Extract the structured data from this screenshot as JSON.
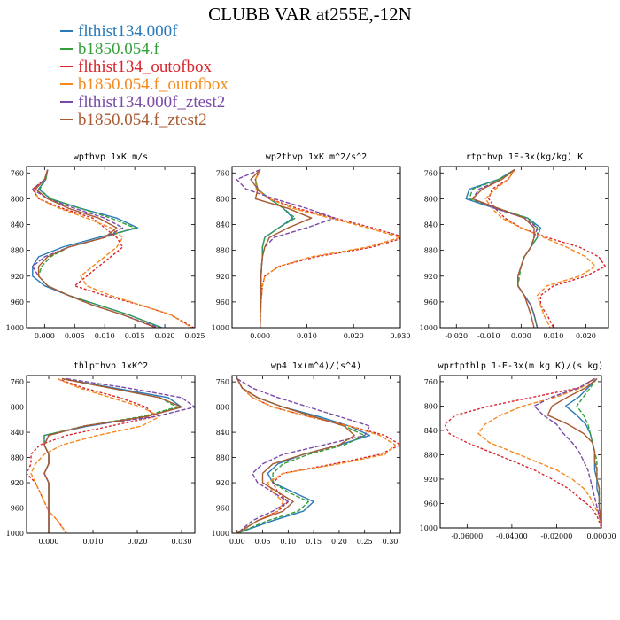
{
  "title": "CLUBB VAR at255E,-12N",
  "legend": [
    {
      "label": "flthist134.000f",
      "color": "#2a7ab8"
    },
    {
      "label": "b1850.054.f",
      "color": "#35a03a"
    },
    {
      "label": "flthist134_outofbox",
      "color": "#d9262e"
    },
    {
      "label": "b1850.054.f_outofbox",
      "color": "#f5891e"
    },
    {
      "label": "flthist134.000f_ztest2",
      "color": "#7a4aa6"
    },
    {
      "label": "b1850.054.f_ztest2",
      "color": "#a85a32"
    }
  ],
  "chart_data": [
    {
      "type": "line",
      "title": "wpthvp  1xK m/s",
      "xlim": [
        -0.003,
        0.025
      ],
      "ylim": [
        1000,
        750
      ],
      "xticks": [
        "0.000",
        "0.005",
        "0.010",
        "0.015",
        "0.020",
        "0.025"
      ],
      "xtick_values": [
        0,
        0.005,
        0.01,
        0.015,
        0.02,
        0.025
      ],
      "yticks": [
        760,
        800,
        840,
        880,
        920,
        960,
        1000
      ],
      "y": [
        755,
        770,
        785,
        800,
        815,
        830,
        845,
        860,
        875,
        890,
        905,
        920,
        935,
        950,
        965,
        980,
        1000
      ],
      "series": [
        {
          "values": [
            0.0005,
            0.0002,
            -0.001,
            0.001,
            0.006,
            0.012,
            0.0155,
            0.009,
            0.003,
            -0.001,
            -0.002,
            -0.002,
            0.0,
            0.004,
            0.009,
            0.014,
            0.0195
          ]
        },
        {
          "values": [
            0.0005,
            0.0002,
            -0.0008,
            0.001,
            0.006,
            0.011,
            0.015,
            0.01,
            0.004,
            0.001,
            -0.0005,
            -0.001,
            0.0005,
            0.004,
            0.009,
            0.014,
            0.0195
          ]
        },
        {
          "values": [
            0.0005,
            0.0,
            -0.002,
            -0.001,
            0.003,
            0.008,
            0.01,
            0.012,
            0.013,
            0.011,
            0.009,
            0.007,
            0.005,
            0.01,
            0.016,
            0.021,
            0.0248
          ]
        },
        {
          "values": [
            0.0005,
            0.0,
            -0.0018,
            -0.001,
            0.0025,
            0.007,
            0.011,
            0.013,
            0.012,
            0.01,
            0.008,
            0.006,
            0.007,
            0.011,
            0.016,
            0.021,
            0.0245
          ]
        },
        {
          "values": [
            0.0005,
            0.0,
            -0.002,
            0.0005,
            0.005,
            0.01,
            0.013,
            0.01,
            0.004,
            0.0,
            -0.002,
            -0.001,
            0.0005,
            0.004,
            0.008,
            0.013,
            0.019
          ]
        },
        {
          "values": [
            0.0005,
            0.0,
            -0.0015,
            0.0005,
            0.004,
            0.009,
            0.012,
            0.01,
            0.004,
            0.0005,
            -0.001,
            -0.001,
            0.0005,
            0.004,
            0.008,
            0.013,
            0.0185
          ]
        }
      ]
    },
    {
      "type": "line",
      "title": "wp2thvp  1xK m^2/s^2",
      "xlim": [
        -0.006,
        0.03
      ],
      "ylim": [
        1000,
        750
      ],
      "xticks": [
        "0.000",
        "0.010",
        "0.020",
        "0.030"
      ],
      "xtick_values": [
        0,
        0.01,
        0.02,
        0.03
      ],
      "yticks": [
        760,
        800,
        840,
        880,
        920,
        960,
        1000
      ],
      "y": [
        755,
        770,
        785,
        800,
        815,
        830,
        845,
        860,
        875,
        890,
        905,
        920,
        935,
        950,
        965,
        980,
        1000
      ],
      "series": [
        {
          "values": [
            0.0,
            -0.001,
            -0.0005,
            0.002,
            0.005,
            0.007,
            0.004,
            0.001,
            0.0005,
            0.0005,
            0.0003,
            0.0002,
            0.0002,
            0.0002,
            0.0001,
            0.0,
            0.0
          ]
        },
        {
          "values": [
            0.0,
            -0.001,
            -0.0005,
            0.002,
            0.005,
            0.0075,
            0.004,
            0.001,
            0.0005,
            0.0005,
            0.0003,
            0.0002,
            0.0002,
            0.0002,
            0.0001,
            0.0,
            0.0
          ]
        },
        {
          "values": [
            0.0,
            -0.001,
            -0.0008,
            0.002,
            0.008,
            0.016,
            0.024,
            0.031,
            0.024,
            0.012,
            0.004,
            0.001,
            0.0005,
            0.0003,
            0.0002,
            0.0001,
            0.0
          ]
        },
        {
          "values": [
            0.0,
            -0.001,
            -0.0008,
            0.002,
            0.007,
            0.015,
            0.023,
            0.03,
            0.023,
            0.011,
            0.004,
            0.001,
            0.0005,
            0.0003,
            0.0002,
            0.0001,
            0.0
          ]
        },
        {
          "values": [
            0.0,
            -0.005,
            -0.003,
            0.003,
            0.01,
            0.016,
            0.01,
            0.003,
            0.001,
            0.0005,
            0.0003,
            0.0002,
            0.0002,
            0.0002,
            0.0001,
            0.0,
            0.0
          ]
        },
        {
          "values": [
            0.0,
            -0.002,
            -0.0005,
            -0.001,
            0.006,
            0.011,
            0.006,
            0.002,
            0.001,
            0.0005,
            0.0003,
            0.0002,
            0.0002,
            0.0002,
            0.0001,
            0.0,
            0.0
          ]
        }
      ]
    },
    {
      "type": "line",
      "title": "rtpthvp  1E-3x(kg/kg) K",
      "xlim": [
        -0.025,
        0.027
      ],
      "ylim": [
        1000,
        750
      ],
      "xticks": [
        "-0.020",
        "-0.010",
        "0.000",
        "0.010",
        "0.020"
      ],
      "xtick_values": [
        -0.02,
        -0.01,
        0,
        0.01,
        0.02
      ],
      "yticks": [
        760,
        800,
        840,
        880,
        920,
        960,
        1000
      ],
      "y": [
        755,
        770,
        785,
        800,
        815,
        830,
        845,
        860,
        875,
        890,
        905,
        920,
        935,
        950,
        965,
        980,
        1000
      ],
      "series": [
        {
          "values": [
            -0.002,
            -0.007,
            -0.016,
            -0.017,
            -0.008,
            0.002,
            0.006,
            0.005,
            0.003,
            0.001,
            0.0,
            -0.001,
            -0.001,
            0.001,
            0.003,
            0.004,
            0.005
          ]
        },
        {
          "values": [
            -0.002,
            -0.007,
            -0.015,
            -0.016,
            -0.007,
            0.002,
            0.005,
            0.005,
            0.003,
            0.001,
            0.0,
            -0.0005,
            -0.001,
            0.001,
            0.003,
            0.004,
            0.005
          ]
        },
        {
          "values": [
            -0.002,
            -0.004,
            -0.009,
            -0.01,
            -0.008,
            -0.005,
            0.0,
            0.008,
            0.018,
            0.024,
            0.026,
            0.02,
            0.01,
            0.006,
            0.006,
            0.008,
            0.01
          ]
        },
        {
          "values": [
            -0.002,
            -0.004,
            -0.008,
            -0.011,
            -0.009,
            -0.006,
            0.0,
            0.007,
            0.014,
            0.02,
            0.023,
            0.018,
            0.008,
            0.005,
            0.006,
            0.007,
            0.009
          ]
        },
        {
          "values": [
            -0.002,
            -0.006,
            -0.013,
            -0.015,
            -0.008,
            0.001,
            0.005,
            0.004,
            0.003,
            0.001,
            0.0,
            -0.001,
            -0.001,
            0.001,
            0.003,
            0.004,
            0.005
          ]
        },
        {
          "values": [
            -0.002,
            -0.006,
            -0.012,
            -0.015,
            -0.007,
            0.001,
            0.004,
            0.004,
            0.003,
            0.001,
            0.0,
            -0.001,
            -0.001,
            0.001,
            0.002,
            0.003,
            0.004
          ]
        }
      ]
    },
    {
      "type": "line",
      "title": "thlpthvp  1xK^2",
      "xlim": [
        -0.005,
        0.033
      ],
      "ylim": [
        1000,
        750
      ],
      "xticks": [
        "0.000",
        "0.010",
        "0.020",
        "0.030"
      ],
      "xtick_values": [
        0,
        0.01,
        0.02,
        0.03
      ],
      "yticks": [
        760,
        800,
        840,
        880,
        920,
        960,
        1000
      ],
      "y": [
        755,
        770,
        785,
        800,
        815,
        830,
        845,
        860,
        875,
        890,
        905,
        920,
        935,
        950,
        965,
        980,
        1000
      ],
      "series": [
        {
          "values": [
            0.003,
            0.015,
            0.027,
            0.03,
            0.022,
            0.009,
            -0.001,
            -0.001,
            0.0,
            0.0,
            -0.001,
            0.0,
            0.0,
            0.0,
            0.0,
            0.0,
            0.0
          ]
        },
        {
          "values": [
            0.003,
            0.014,
            0.025,
            0.029,
            0.021,
            0.008,
            -0.001,
            -0.001,
            0.0,
            0.0,
            -0.001,
            0.0,
            0.0,
            0.0,
            0.0,
            0.0,
            0.0
          ]
        },
        {
          "values": [
            0.002,
            0.008,
            0.016,
            0.022,
            0.024,
            0.014,
            0.004,
            -0.002,
            -0.004,
            -0.004,
            -0.005,
            -0.003,
            -0.002,
            -0.001,
            0.0,
            0.002,
            0.004
          ]
        },
        {
          "values": [
            0.002,
            0.007,
            0.014,
            0.021,
            0.025,
            0.021,
            0.011,
            0.003,
            -0.001,
            -0.003,
            -0.004,
            -0.003,
            -0.002,
            -0.001,
            0.0,
            0.002,
            0.004
          ]
        },
        {
          "values": [
            0.004,
            0.018,
            0.03,
            0.033,
            0.024,
            0.008,
            0.0,
            -0.001,
            0.0,
            0.0,
            -0.001,
            0.0,
            0.0,
            0.0,
            0.0,
            0.0,
            0.0
          ]
        },
        {
          "values": [
            0.003,
            0.014,
            0.025,
            0.03,
            0.022,
            0.008,
            0.0,
            -0.001,
            0.0,
            0.0,
            -0.001,
            0.0,
            0.0,
            0.0,
            0.0,
            0.0,
            0.0
          ]
        }
      ]
    },
    {
      "type": "line",
      "title": "wp4  1x(m^4)/(s^4)",
      "xlim": [
        -0.01,
        0.32
      ],
      "ylim": [
        1000,
        750
      ],
      "xticks": [
        "0.00",
        "0.05",
        "0.10",
        "0.15",
        "0.20",
        "0.25",
        "0.30"
      ],
      "xtick_values": [
        0,
        0.05,
        0.1,
        0.15,
        0.2,
        0.25,
        0.3
      ],
      "yticks": [
        760,
        800,
        840,
        880,
        920,
        960,
        1000
      ],
      "y": [
        755,
        770,
        785,
        800,
        815,
        830,
        845,
        860,
        875,
        890,
        905,
        920,
        935,
        950,
        965,
        980,
        1000
      ],
      "series": [
        {
          "values": [
            0.0,
            0.01,
            0.04,
            0.09,
            0.16,
            0.22,
            0.26,
            0.2,
            0.13,
            0.08,
            0.06,
            0.07,
            0.11,
            0.15,
            0.13,
            0.07,
            0.0
          ]
        },
        {
          "values": [
            0.0,
            0.01,
            0.04,
            0.09,
            0.15,
            0.21,
            0.25,
            0.21,
            0.14,
            0.09,
            0.07,
            0.07,
            0.1,
            0.14,
            0.12,
            0.06,
            0.0
          ]
        },
        {
          "values": [
            0.0,
            0.01,
            0.03,
            0.07,
            0.14,
            0.22,
            0.29,
            0.32,
            0.28,
            0.19,
            0.09,
            0.07,
            0.08,
            0.1,
            0.08,
            0.04,
            0.0
          ]
        },
        {
          "values": [
            0.0,
            0.01,
            0.03,
            0.07,
            0.14,
            0.22,
            0.28,
            0.31,
            0.29,
            0.2,
            0.09,
            0.06,
            0.07,
            0.09,
            0.08,
            0.04,
            0.0
          ]
        },
        {
          "values": [
            0.0,
            0.03,
            0.08,
            0.14,
            0.2,
            0.26,
            0.25,
            0.17,
            0.09,
            0.05,
            0.03,
            0.04,
            0.07,
            0.1,
            0.07,
            0.03,
            0.0
          ]
        },
        {
          "values": [
            0.0,
            0.01,
            0.04,
            0.09,
            0.15,
            0.21,
            0.23,
            0.2,
            0.13,
            0.07,
            0.05,
            0.05,
            0.08,
            0.11,
            0.09,
            0.04,
            0.0
          ]
        }
      ]
    },
    {
      "type": "line",
      "title": "wprtpthlp  1-E-3x(m kg K)/(s kg)",
      "xlim": [
        -0.072,
        0.0
      ],
      "ylim": [
        1000,
        750
      ],
      "xticks": [
        "-0.06000",
        "-0.04000",
        "-0.02000",
        "0.00000"
      ],
      "xtick_values": [
        -0.06,
        -0.04,
        -0.02,
        0
      ],
      "yticks": [
        760,
        800,
        840,
        880,
        920,
        960,
        1000
      ],
      "y": [
        755,
        770,
        785,
        800,
        815,
        830,
        845,
        860,
        875,
        890,
        905,
        920,
        935,
        950,
        965,
        980,
        1000
      ],
      "series": [
        {
          "values": [
            -0.002,
            -0.006,
            -0.01,
            -0.016,
            -0.011,
            -0.007,
            -0.005,
            -0.004,
            -0.003,
            -0.003,
            -0.003,
            -0.002,
            -0.002,
            -0.001,
            -0.001,
            -0.0005,
            0.0
          ]
        },
        {
          "values": [
            -0.002,
            -0.005,
            -0.008,
            -0.011,
            -0.008,
            -0.006,
            -0.005,
            -0.004,
            -0.003,
            -0.002,
            -0.002,
            -0.002,
            -0.001,
            -0.001,
            -0.001,
            -0.0005,
            0.0
          ]
        },
        {
          "values": [
            -0.003,
            -0.01,
            -0.03,
            -0.05,
            -0.065,
            -0.07,
            -0.068,
            -0.06,
            -0.05,
            -0.04,
            -0.03,
            -0.022,
            -0.015,
            -0.01,
            -0.005,
            -0.002,
            0.0
          ]
        },
        {
          "values": [
            -0.003,
            -0.009,
            -0.02,
            -0.035,
            -0.045,
            -0.052,
            -0.055,
            -0.05,
            -0.04,
            -0.03,
            -0.02,
            -0.013,
            -0.008,
            -0.005,
            -0.003,
            -0.001,
            0.0
          ]
        },
        {
          "values": [
            -0.003,
            -0.01,
            -0.022,
            -0.03,
            -0.026,
            -0.02,
            -0.017,
            -0.013,
            -0.01,
            -0.008,
            -0.006,
            -0.005,
            -0.004,
            -0.003,
            -0.002,
            -0.001,
            0.0
          ]
        },
        {
          "values": [
            -0.002,
            -0.007,
            -0.015,
            -0.022,
            -0.024,
            -0.015,
            -0.008,
            -0.004,
            -0.003,
            -0.003,
            -0.002,
            -0.002,
            -0.001,
            -0.001,
            -0.001,
            -0.0005,
            0.0
          ]
        }
      ]
    }
  ]
}
